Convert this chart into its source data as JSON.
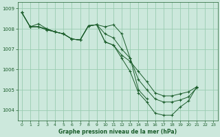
{
  "title": "Graphe pression niveau de la mer (hPa)",
  "bg_color": "#cce8dc",
  "grid_color": "#99ccb0",
  "line_color": "#1a5c2a",
  "xlim": [
    -0.5,
    23.5
  ],
  "ylim": [
    1003.5,
    1009.3
  ],
  "yticks": [
    1004,
    1005,
    1006,
    1007,
    1008,
    1009
  ],
  "xticks": [
    0,
    1,
    2,
    3,
    4,
    5,
    6,
    7,
    8,
    9,
    10,
    11,
    12,
    13,
    14,
    15,
    16,
    17,
    18,
    19,
    20,
    21,
    22,
    23
  ],
  "series": [
    [
      1008.8,
      1008.1,
      1008.1,
      1008.0,
      1007.85,
      1007.75,
      1007.5,
      1007.45,
      1008.15,
      1008.2,
      1007.35,
      1007.2,
      1006.7,
      1006.4,
      1005.9,
      1005.4,
      1004.85,
      1004.7,
      1004.7,
      1004.8,
      1004.9,
      1005.15,
      null,
      null
    ],
    [
      1008.8,
      1008.1,
      1008.25,
      1008.0,
      1007.85,
      1007.75,
      1007.5,
      1007.45,
      1008.15,
      1008.2,
      1008.1,
      1008.2,
      1007.75,
      1006.55,
      1005.0,
      1004.55,
      null,
      null,
      null,
      null,
      null,
      null,
      null,
      null
    ],
    [
      1008.8,
      1008.1,
      1008.1,
      1007.95,
      1007.85,
      1007.75,
      1007.5,
      1007.45,
      1008.15,
      1008.2,
      1007.75,
      1007.55,
      1007.0,
      1006.55,
      1005.5,
      1005.0,
      1004.55,
      1004.4,
      1004.4,
      1004.5,
      1004.65,
      1005.1,
      null,
      null
    ],
    [
      1008.8,
      1008.1,
      1008.1,
      1007.95,
      1007.85,
      1007.75,
      1007.5,
      1007.45,
      1008.15,
      1008.2,
      1007.35,
      1007.2,
      1006.55,
      1005.9,
      1004.85,
      1004.4,
      1003.85,
      1003.75,
      1003.75,
      1004.15,
      1004.45,
      1005.15,
      null,
      null
    ]
  ]
}
